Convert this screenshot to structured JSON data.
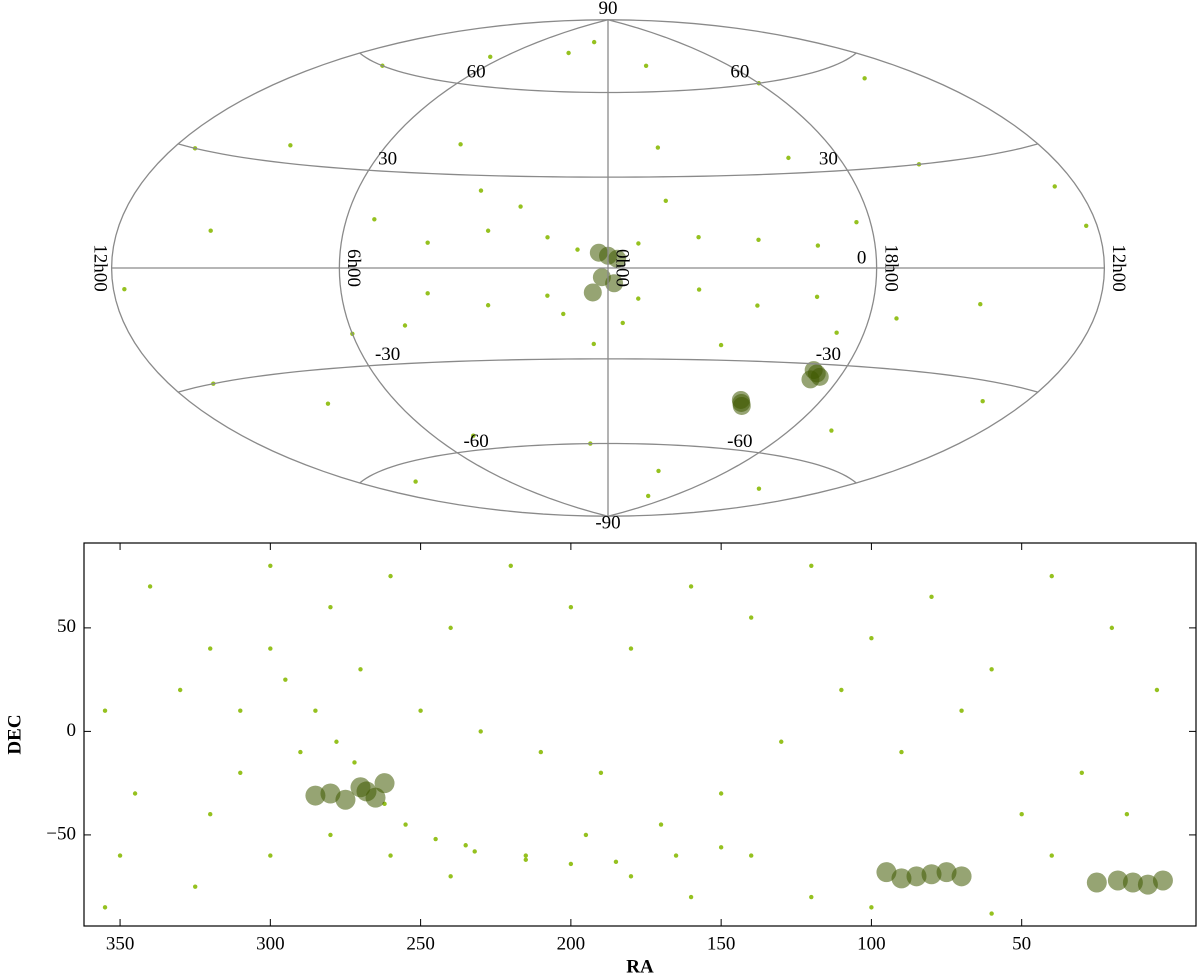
{
  "chart_data": [
    {
      "type": "hammer",
      "xlim": [
        180,
        -180
      ],
      "ylim": [
        -90,
        90
      ],
      "xticks": [
        {
          "value": 180,
          "label": "12h00"
        },
        {
          "value": 90,
          "label": "6h00"
        },
        {
          "value": 0,
          "label": "0h00"
        },
        {
          "value": -90,
          "label": "18h00"
        },
        {
          "value": -180,
          "label": "12h00"
        }
      ],
      "yticks": [
        -90,
        -60,
        -30,
        0,
        30,
        60,
        90
      ],
      "grid": true,
      "series": [
        {
          "color": "#95c11f",
          "x": [
            150,
            100,
            40,
            -30,
            -90,
            -150,
            170,
            130,
            60,
            -20,
            -70,
            -120,
            -170,
            160,
            120,
            70,
            10,
            -40,
            -110,
            -160,
            150,
            -140,
            90,
            -100,
            175,
            -175,
            140,
            -130,
            20,
            -60,
            60,
            40,
            20,
            10,
            -10,
            -30,
            -50,
            -70,
            60,
            40,
            20,
            -10,
            -30,
            -50,
            -70,
            80,
            -85,
            70,
            -80,
            30,
            -20,
            5,
            15,
            -5,
            45,
            -40
          ],
          "y": [
            60,
            70,
            75,
            70,
            60,
            55,
            30,
            35,
            40,
            40,
            35,
            30,
            20,
            -30,
            -40,
            -55,
            -60,
            -70,
            -50,
            -35,
            -65,
            -70,
            -20,
            -15,
            -5,
            10,
            10,
            -10,
            80,
            -80,
            8,
            12,
            10,
            6,
            8,
            10,
            9,
            7,
            -8,
            -12,
            -9,
            -10,
            -7,
            -12,
            -9,
            15,
            14,
            -18,
            -20,
            20,
            22,
            -25,
            -15,
            -18,
            25,
            -25
          ]
        },
        {
          "color": "#3f5a00",
          "x": [
            0,
            3,
            -3,
            2,
            -2,
            5,
            -80,
            -82,
            -78,
            -79,
            -57,
            -58,
            -56
          ],
          "y": [
            4,
            5,
            3,
            -3,
            -5,
            -8,
            -33,
            -34,
            -32,
            -35,
            -44,
            -45,
            -43
          ]
        }
      ]
    },
    {
      "type": "scatter",
      "xlabel": "RA",
      "ylabel": "DEC",
      "xlim": [
        362,
        -8
      ],
      "ylim": [
        -94,
        91
      ],
      "xticks": [
        350,
        300,
        250,
        200,
        150,
        100,
        50
      ],
      "yticks": [
        {
          "value": -50,
          "label": "−50"
        },
        0,
        50
      ],
      "grid": false,
      "series": [
        {
          "color": "#95c11f",
          "x": [
            340,
            320,
            300,
            280,
            260,
            240,
            220,
            200,
            180,
            160,
            140,
            120,
            100,
            80,
            60,
            40,
            20,
            5,
            30,
            50,
            70,
            90,
            110,
            130,
            150,
            170,
            190,
            210,
            230,
            350,
            355,
            345,
            330,
            310,
            290,
            270,
            250,
            235,
            215,
            195,
            180,
            160,
            140,
            120,
            100,
            60,
            40,
            15,
            355,
            325,
            300,
            295,
            285,
            278,
            272,
            262,
            255,
            245,
            232,
            215,
            200,
            185,
            165,
            150,
            310,
            320,
            280,
            260,
            240,
            300
          ],
          "y": [
            70,
            40,
            80,
            60,
            75,
            50,
            80,
            60,
            40,
            70,
            55,
            80,
            45,
            65,
            30,
            75,
            50,
            20,
            -20,
            -40,
            10,
            -10,
            20,
            -5,
            -30,
            -45,
            -20,
            -10,
            0,
            -60,
            10,
            -30,
            20,
            10,
            -10,
            30,
            10,
            -55,
            -60,
            -50,
            -70,
            -80,
            -60,
            -80,
            -85,
            -88,
            -60,
            -40,
            -85,
            -75,
            40,
            25,
            10,
            -5,
            -15,
            -35,
            -45,
            -52,
            -58,
            -62,
            -64,
            -63,
            -60,
            -56,
            -20,
            -40,
            -50,
            -60,
            -70,
            -60
          ]
        },
        {
          "color": "#3f5a00",
          "x": [
            268,
            265,
            270,
            262,
            275,
            280,
            285,
            80,
            85,
            75,
            90,
            70,
            95,
            13,
            18,
            8,
            25,
            3
          ],
          "y": [
            -29,
            -32,
            -27,
            -25,
            -33,
            -30,
            -31,
            -69,
            -70,
            -68,
            -71,
            -70,
            -68,
            -73,
            -72,
            -74,
            -73,
            -72
          ]
        }
      ]
    }
  ]
}
